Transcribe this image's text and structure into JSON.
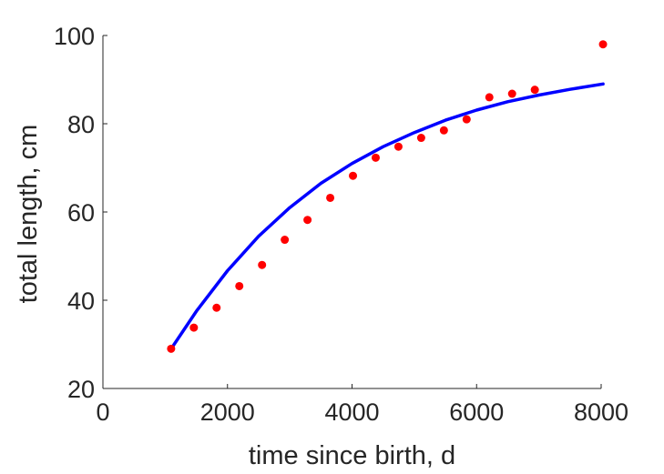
{
  "chart_data": {
    "type": "scatter",
    "title": "",
    "xlabel": "time since birth, d",
    "ylabel": "total length, cm",
    "xlim": [
      0,
      8000
    ],
    "ylim": [
      20,
      100
    ],
    "xticks": [
      0,
      2000,
      4000,
      6000,
      8000
    ],
    "yticks": [
      20,
      40,
      60,
      80,
      100
    ],
    "grid": false,
    "legend": "none",
    "series": [
      {
        "kind": "points",
        "color": "#ff0000",
        "x": [
          1095,
          1460,
          1825,
          2190,
          2555,
          2920,
          3285,
          3650,
          4015,
          4380,
          4745,
          5110,
          5475,
          5840,
          6205,
          6570,
          6935,
          8030
        ],
        "y": [
          29.0,
          33.8,
          38.3,
          43.2,
          48.0,
          53.7,
          58.2,
          63.2,
          68.2,
          72.3,
          74.8,
          76.8,
          78.5,
          81.0,
          86.0,
          86.8,
          87.7,
          98.0
        ]
      },
      {
        "kind": "curve",
        "color": "#0000ff",
        "x": [
          1095,
          1500,
          2000,
          2500,
          3000,
          3500,
          4000,
          4500,
          5000,
          5500,
          6000,
          6500,
          7000,
          7500,
          8030
        ],
        "y": [
          29.0,
          37.5,
          46.7,
          54.5,
          61.0,
          66.5,
          71.0,
          74.8,
          78.0,
          80.8,
          83.1,
          85.0,
          86.5,
          87.8,
          89.0
        ]
      }
    ]
  }
}
